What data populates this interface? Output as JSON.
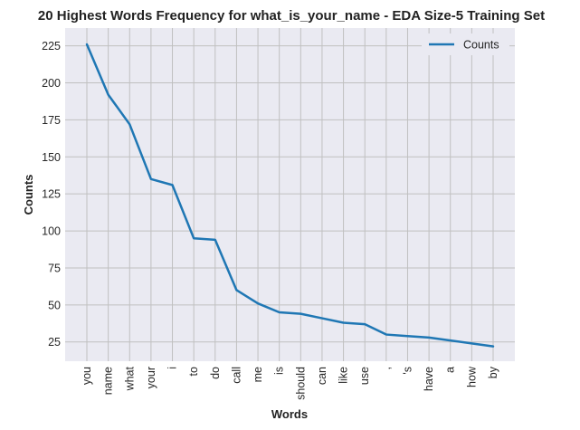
{
  "chart_data": {
    "type": "line",
    "title": "20 Highest Words Frequency for what_is_your_name - EDA Size-5 Training Set",
    "xlabel": "Words",
    "ylabel": "Counts",
    "categories": [
      "you",
      "name",
      "what",
      "your",
      "i",
      "to",
      "do",
      "call",
      "me",
      "is",
      "should",
      "can",
      "like",
      "use",
      ",",
      "'s",
      "have",
      "a",
      "how",
      "by"
    ],
    "series": [
      {
        "name": "Counts",
        "values": [
          226,
          192,
          172,
          135,
          131,
          95,
          94,
          60,
          51,
          45,
          44,
          41,
          38,
          37,
          30,
          29,
          28,
          26,
          24,
          22
        ]
      }
    ],
    "yticks": [
      25,
      50,
      75,
      100,
      125,
      150,
      175,
      200,
      225
    ],
    "ylim": [
      12,
      237
    ],
    "grid": true,
    "legend_position": "top-right",
    "colors": {
      "line": "#1f77b4",
      "plot_background": "#eaeaf2",
      "grid": "#c0c0c0"
    }
  }
}
